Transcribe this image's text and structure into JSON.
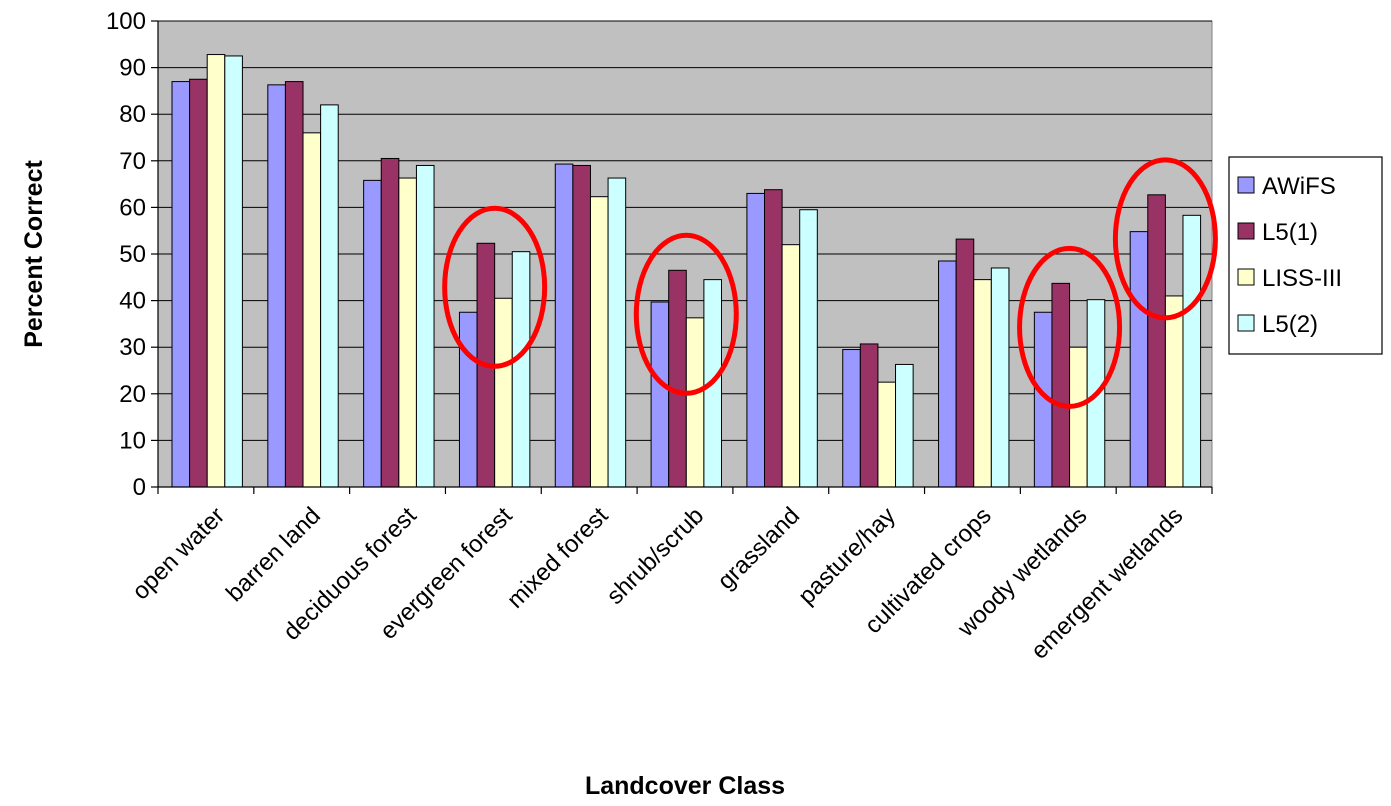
{
  "chart_data": {
    "type": "bar",
    "title": "",
    "xlabel": "Landcover Class",
    "ylabel": "Percent Correct",
    "ylim": [
      0,
      100
    ],
    "yticks": [
      0,
      10,
      20,
      30,
      40,
      50,
      60,
      70,
      80,
      90,
      100
    ],
    "grid": true,
    "legend_position": "right",
    "categories": [
      "open water",
      "barren land",
      "deciduous forest",
      "evergreen forest",
      "mixed forest",
      "shrub/scrub",
      "grassland",
      "pasture/hay",
      "cultivated crops",
      "woody wetlands",
      "emergent wetlands"
    ],
    "series": [
      {
        "name": "AWiFS",
        "color": "#9999ff",
        "values": [
          87,
          86.3,
          65.8,
          37.5,
          69.3,
          39.7,
          63,
          29.5,
          48.5,
          37.5,
          54.8
        ]
      },
      {
        "name": "L5(1)",
        "color": "#993366",
        "values": [
          87.5,
          87,
          70.5,
          52.3,
          69,
          46.5,
          63.8,
          30.7,
          53.2,
          43.7,
          62.7
        ]
      },
      {
        "name": "LISS-III",
        "color": "#ffffcc",
        "values": [
          92.8,
          76,
          66.3,
          40.5,
          62.3,
          36.3,
          52,
          22.5,
          44.5,
          30,
          41
        ]
      },
      {
        "name": "L5(2)",
        "color": "#ccffff",
        "values": [
          92.5,
          82,
          69,
          50.5,
          66.3,
          44.5,
          59.5,
          26.3,
          47,
          40.2,
          58.3
        ]
      }
    ],
    "highlighted_categories": [
      "evergreen forest",
      "shrub/scrub",
      "woody wetlands",
      "emergent wetlands"
    ],
    "highlight_color": "#ff0000",
    "plot_background": "#c0c0c0"
  }
}
